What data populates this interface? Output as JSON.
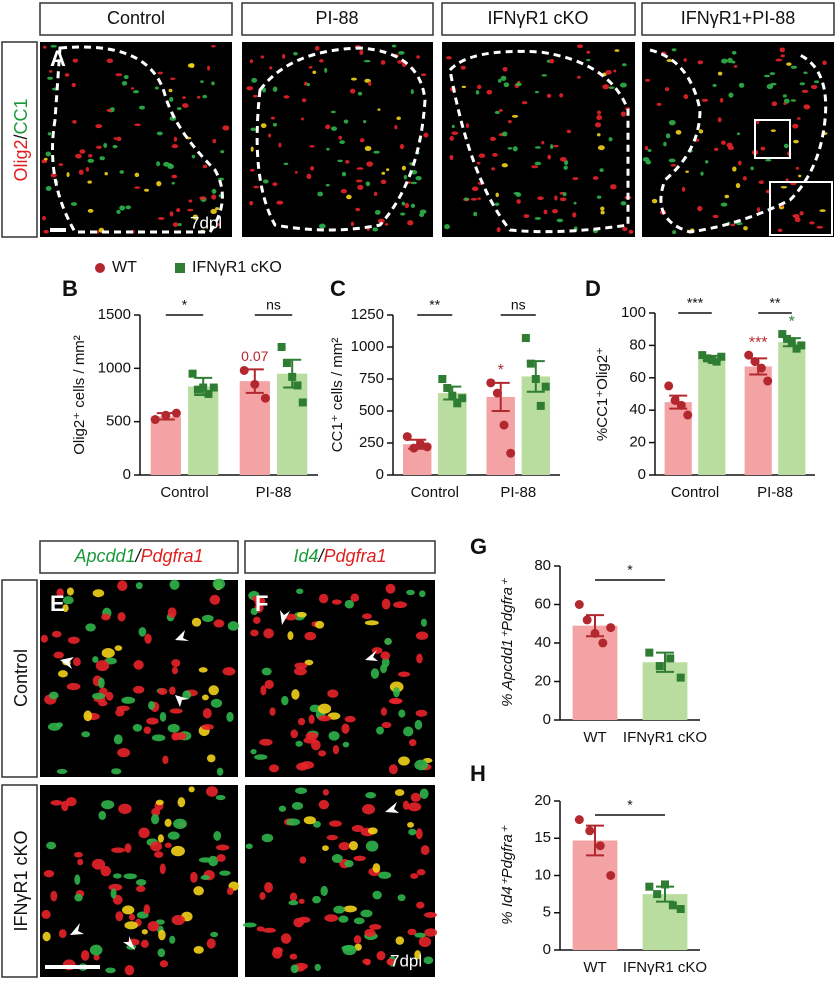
{
  "figure": {
    "top_headers": [
      "Control",
      "PI-88",
      "IFNγR1 cKO",
      "IFNγR1+PI-88"
    ],
    "top_row_label": [
      "Olig2",
      "/",
      "CC1"
    ],
    "panel_a": "A",
    "top_dpl": "7dpl",
    "bottom_headers": [
      [
        "Apcdd1",
        "/",
        "Pdgfra1"
      ],
      [
        "Id4",
        "/",
        "Pdgfra1"
      ]
    ],
    "bottom_row_labels": [
      "Control",
      "IFNγR1 cKO"
    ],
    "panel_e": "E",
    "panel_f": "F",
    "bottom_dpl": "7dpl"
  },
  "chart_data": [
    {
      "type": "bar",
      "panel": "B",
      "ylabel": "Olig2⁺ cells / mm²",
      "categories": [
        "Control",
        "PI-88"
      ],
      "ylim": [
        0,
        1500
      ],
      "yticks": [
        0,
        500,
        1000,
        1500
      ],
      "legend": true,
      "significance": [
        "*",
        "ns"
      ],
      "series": [
        {
          "name": "WT",
          "color": "#f4a3a5",
          "point_color": "#b3282e",
          "values": [
            550,
            880
          ],
          "errors": [
            30,
            110
          ],
          "points": [
            [
              520,
              560,
              580
            ],
            [
              980,
              850,
              720
            ]
          ],
          "markers": [
            null,
            "0.07"
          ]
        },
        {
          "name": "IFNγR1 cKO",
          "color": "#b9dd9e",
          "point_color": "#2e7d32",
          "values": [
            830,
            950
          ],
          "errors": [
            80,
            130
          ],
          "points": [
            [
              950,
              800,
              820,
              760,
              820
            ],
            [
              1200,
              1050,
              920,
              840,
              680
            ]
          ],
          "markers": [
            null,
            null
          ]
        }
      ]
    },
    {
      "type": "bar",
      "panel": "C",
      "ylabel": "CC1⁺ cells / mm²",
      "categories": [
        "Control",
        "PI-88"
      ],
      "ylim": [
        0,
        1250
      ],
      "yticks": [
        0,
        250,
        500,
        750,
        1000,
        1250
      ],
      "significance": [
        "**",
        "ns"
      ],
      "series": [
        {
          "color": "#f4a3a5",
          "point_color": "#b3282e",
          "values": [
            240,
            610
          ],
          "errors": [
            35,
            110
          ],
          "points": [
            [
              300,
              210,
              240,
              220
            ],
            [
              720,
              640,
              390,
              170
            ]
          ],
          "markers": [
            null,
            "*"
          ]
        },
        {
          "color": "#b9dd9e",
          "point_color": "#2e7d32",
          "values": [
            640,
            770
          ],
          "errors": [
            50,
            120
          ],
          "points": [
            [
              750,
              680,
              620,
              560,
              600
            ],
            [
              1070,
              870,
              750,
              540,
              690
            ]
          ],
          "markers": [
            null,
            null
          ]
        }
      ]
    },
    {
      "type": "bar",
      "panel": "D",
      "ylabel": "%CC1⁺Olig2⁺",
      "categories": [
        "Control",
        "PI-88"
      ],
      "ylim": [
        0,
        100
      ],
      "yticks": [
        0,
        20,
        40,
        60,
        80,
        100
      ],
      "significance": [
        "***",
        "**"
      ],
      "series": [
        {
          "color": "#f4a3a5",
          "point_color": "#b3282e",
          "values": [
            45,
            67
          ],
          "errors": [
            4,
            5
          ],
          "points": [
            [
              55,
              46,
              43,
              37
            ],
            [
              74,
              70,
              66,
              58
            ]
          ],
          "markers": [
            null,
            "***"
          ]
        },
        {
          "color": "#b9dd9e",
          "point_color": "#2e7d32",
          "values": [
            72,
            82
          ],
          "errors": [
            1.5,
            2.5
          ],
          "points": [
            [
              74,
              72,
              71,
              70,
              73
            ],
            [
              87,
              84,
              82,
              78,
              80
            ]
          ],
          "markers": [
            null,
            "*"
          ]
        }
      ]
    },
    {
      "type": "bar",
      "panel": "G",
      "ylabel": "% Apcdd1⁺Pdgfra⁺",
      "categories": [
        "WT",
        "IFNγR1 cKO"
      ],
      "ylim": [
        0,
        80
      ],
      "yticks": [
        0,
        20,
        40,
        60,
        80
      ],
      "significance": [
        "*"
      ],
      "series": [
        {
          "colors": [
            "#f4a3a5",
            "#b9dd9e"
          ],
          "point_colors": [
            "#b3282e",
            "#2e7d32"
          ],
          "values": [
            49,
            30
          ],
          "errors": [
            5.5,
            5
          ],
          "points": [
            [
              60,
              52,
              45,
              40,
              48
            ],
            [
              35,
              28,
              32,
              22
            ]
          ]
        }
      ]
    },
    {
      "type": "bar",
      "panel": "H",
      "ylabel": "% Id4⁺Pdgfra⁺",
      "categories": [
        "WT",
        "IFNγR1 cKO"
      ],
      "ylim": [
        0,
        20
      ],
      "yticks": [
        0,
        5,
        10,
        15,
        20
      ],
      "significance": [
        "*"
      ],
      "series": [
        {
          "colors": [
            "#f4a3a5",
            "#b9dd9e"
          ],
          "point_colors": [
            "#b3282e",
            "#2e7d32"
          ],
          "values": [
            14.7,
            7.5
          ],
          "errors": [
            2,
            1
          ],
          "points": [
            [
              17.5,
              16,
              14,
              10
            ],
            [
              8.5,
              7.5,
              8.8,
              6,
              5.5
            ]
          ]
        }
      ]
    }
  ]
}
